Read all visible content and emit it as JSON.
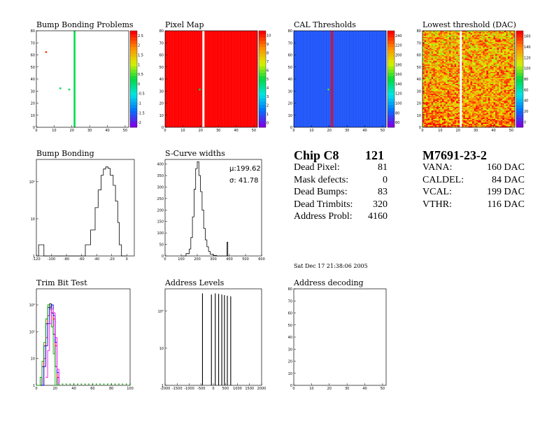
{
  "chart_data": [
    {
      "type": "heatmap",
      "title": "Bump Bonding Problems",
      "xlim": [
        0,
        52
      ],
      "ylim": [
        0,
        80
      ],
      "xticks": [
        "0",
        "10",
        "20",
        "30",
        "40",
        "50"
      ],
      "yticks": [
        "0",
        "10",
        "20",
        "30",
        "40",
        "50",
        "60",
        "70",
        "80"
      ],
      "colorbar": {
        "min": -2,
        "max": 2.5,
        "ticks": [
          "2.5",
          "2",
          "1.5",
          "1",
          "0.5",
          "0",
          "-0.5",
          "-1",
          "-1.5",
          "-2"
        ]
      },
      "features": [
        {
          "kind": "column",
          "x": 21,
          "value": 0.2
        },
        {
          "kind": "pixel",
          "x": 5,
          "y": 63,
          "value": 2.2
        },
        {
          "kind": "pixel",
          "x": 13,
          "y": 33,
          "value": 0.1
        },
        {
          "kind": "pixel",
          "x": 18,
          "y": 32,
          "value": 0.1
        }
      ]
    },
    {
      "type": "heatmap",
      "title": "Pixel Map",
      "xlim": [
        0,
        52
      ],
      "ylim": [
        0,
        80
      ],
      "xticks": [
        "0",
        "10",
        "20",
        "30",
        "40",
        "50"
      ],
      "yticks": [
        "0",
        "10",
        "20",
        "30",
        "40",
        "50",
        "60",
        "70",
        "80"
      ],
      "colorbar": {
        "min": 0,
        "max": 10,
        "ticks": [
          "10",
          "9",
          "8",
          "7",
          "6",
          "5",
          "4",
          "3",
          "2",
          "1",
          "0"
        ]
      },
      "features": [
        {
          "kind": "fill",
          "value": 10
        },
        {
          "kind": "empty-column",
          "x": 21
        },
        {
          "kind": "pixel",
          "x": 19,
          "y": 32,
          "value": 5
        }
      ]
    },
    {
      "type": "heatmap",
      "title": "CAL Thresholds",
      "xlim": [
        0,
        52
      ],
      "ylim": [
        0,
        80
      ],
      "xticks": [
        "0",
        "10",
        "20",
        "30",
        "40",
        "50"
      ],
      "yticks": [
        "0",
        "10",
        "20",
        "30",
        "40",
        "50",
        "60",
        "70",
        "80"
      ],
      "colorbar": {
        "min": 50,
        "max": 250,
        "ticks": [
          "240",
          "220",
          "200",
          "180",
          "160",
          "140",
          "120",
          "100",
          "80",
          "60"
        ]
      },
      "features": [
        {
          "kind": "fill",
          "value": 75
        },
        {
          "kind": "column",
          "x": 21,
          "value": 250
        },
        {
          "kind": "pixel",
          "x": 19,
          "y": 32,
          "value": 160
        }
      ]
    },
    {
      "type": "heatmap",
      "title": "Lowest threshold (DAC)",
      "xlim": [
        0,
        52
      ],
      "ylim": [
        0,
        80
      ],
      "xticks": [
        "0",
        "10",
        "20",
        "30",
        "40",
        "50"
      ],
      "yticks": [
        "0",
        "10",
        "20",
        "30",
        "40",
        "50",
        "60",
        "70",
        "80"
      ],
      "colorbar": {
        "min": 0,
        "max": 170,
        "ticks": [
          "160",
          "140",
          "120",
          "100",
          "80",
          "60",
          "40",
          "20",
          "0"
        ]
      },
      "features": [
        {
          "kind": "noise",
          "value": 140
        },
        {
          "kind": "empty-column",
          "x": 21
        }
      ]
    },
    {
      "type": "line",
      "title": "Bump Bonding",
      "xlim": [
        -120,
        10
      ],
      "ylog": true,
      "xticks": [
        "-120",
        "-100",
        "-80",
        "-60",
        "-40",
        "-20",
        "0"
      ],
      "yticks": [
        "1",
        "10",
        "10²"
      ],
      "x": [
        -120,
        -117,
        -110,
        -90,
        -70,
        -62,
        -55,
        -48,
        -42,
        -38,
        -34,
        -31,
        -28,
        -25,
        -22,
        -18,
        -15,
        -12,
        -10,
        -7,
        -5,
        -2,
        0
      ],
      "values": [
        0,
        2,
        0,
        0,
        0,
        1,
        2,
        5,
        20,
        60,
        150,
        220,
        250,
        230,
        150,
        80,
        30,
        8,
        2,
        1,
        0,
        1,
        0
      ]
    },
    {
      "type": "line",
      "title": "S-Curve widths",
      "xlim": [
        0,
        600
      ],
      "ylim": [
        0,
        420
      ],
      "xticks": [
        "0",
        "100",
        "200",
        "300",
        "400",
        "500",
        "600"
      ],
      "yticks": [
        "0",
        "50",
        "100",
        "150",
        "200",
        "250",
        "300",
        "350",
        "400"
      ],
      "stats": {
        "mean": "μ:199.62",
        "rms": "σ: 41.78"
      },
      "x": [
        100,
        130,
        150,
        160,
        170,
        180,
        190,
        200,
        210,
        220,
        230,
        240,
        250,
        260,
        270,
        280,
        300,
        320,
        380,
        385,
        390,
        400
      ],
      "values": [
        0,
        10,
        30,
        80,
        170,
        290,
        380,
        410,
        350,
        280,
        200,
        120,
        70,
        40,
        20,
        8,
        2,
        0,
        0,
        60,
        0,
        0
      ]
    },
    {
      "type": "line",
      "title": "Trim Bit Test",
      "xlim": [
        0,
        100
      ],
      "ylog": true,
      "xticks": [
        "0",
        "20",
        "40",
        "60",
        "80",
        "100"
      ],
      "yticks": [
        "1",
        "10",
        "10²",
        "10³"
      ],
      "series": [
        {
          "color": "#000000",
          "x": [
            0,
            4,
            6,
            8,
            10,
            12,
            14,
            16,
            18,
            20,
            22,
            24
          ],
          "values": [
            1,
            1,
            5,
            30,
            200,
            800,
            1100,
            500,
            80,
            5,
            1,
            1
          ]
        },
        {
          "color": "#ff0000",
          "x": [
            6,
            8,
            10,
            12,
            14,
            16,
            18,
            20,
            22,
            24
          ],
          "values": [
            1,
            10,
            60,
            400,
            900,
            1000,
            300,
            30,
            2,
            1
          ]
        },
        {
          "color": "#00aa00",
          "x": [
            0,
            4,
            6,
            8,
            10,
            12,
            14,
            16,
            18,
            20,
            22,
            24
          ],
          "values": [
            1,
            2,
            8,
            40,
            300,
            1000,
            700,
            150,
            15,
            1,
            1,
            1
          ]
        },
        {
          "color": "#0000ff",
          "x": [
            6,
            8,
            10,
            12,
            14,
            16,
            18,
            20,
            22,
            24
          ],
          "values": [
            1,
            5,
            30,
            200,
            800,
            1000,
            400,
            40,
            3,
            1
          ]
        },
        {
          "color": "#ff00ff",
          "x": [
            10,
            12,
            14,
            16,
            18,
            20,
            22,
            24
          ],
          "values": [
            2,
            20,
            200,
            700,
            500,
            60,
            4,
            1
          ]
        }
      ],
      "baseline_markers": {
        "color": "#00aa00",
        "x": [
          24,
          28,
          32,
          36,
          40,
          44,
          48,
          52,
          56,
          60,
          64,
          68,
          72,
          76,
          80,
          84,
          88,
          92,
          96,
          100
        ]
      }
    },
    {
      "type": "bar",
      "title": "Address Levels",
      "xlim": [
        -2000,
        2000
      ],
      "ylog": true,
      "xticks": [
        "-2000",
        "-1500",
        "-1000",
        "-500",
        "0",
        "500",
        "1000",
        "1500",
        "2000"
      ],
      "yticks": [
        "1",
        "10",
        "10²"
      ],
      "x": [
        -450,
        -80,
        80,
        220,
        350,
        460,
        580,
        720
      ],
      "values": [
        300,
        280,
        300,
        290,
        280,
        270,
        260,
        250
      ]
    },
    {
      "type": "scatter",
      "title": "Address decoding",
      "xlim": [
        0,
        52
      ],
      "ylim": [
        0,
        80
      ],
      "xticks": [
        "0",
        "10",
        "20",
        "30",
        "40",
        "50"
      ],
      "yticks": [
        "0",
        "10",
        "20",
        "30",
        "40",
        "50",
        "60",
        "70",
        "80"
      ],
      "x": [],
      "y": []
    }
  ],
  "chip_info": {
    "chip_label": "Chip C8",
    "chip_number": "121",
    "rows": [
      {
        "label": "Dead Pixel:",
        "value": "81"
      },
      {
        "label": "Mask defects:",
        "value": "0"
      },
      {
        "label": "Dead Bumps:",
        "value": "83"
      },
      {
        "label": "Dead Trimbits:",
        "value": "320"
      },
      {
        "label": "Address Probl:",
        "value": "4160"
      }
    ]
  },
  "module_info": {
    "module_id": "M7691-23-2",
    "rows": [
      {
        "label": "VANA:",
        "value": "160 DAC"
      },
      {
        "label": "CALDEL:",
        "value": "84 DAC"
      },
      {
        "label": "VCAL:",
        "value": "199 DAC"
      },
      {
        "label": "VTHR:",
        "value": "116 DAC"
      }
    ]
  },
  "timestamp": "Sat Dec 17 21:38:06 2005"
}
